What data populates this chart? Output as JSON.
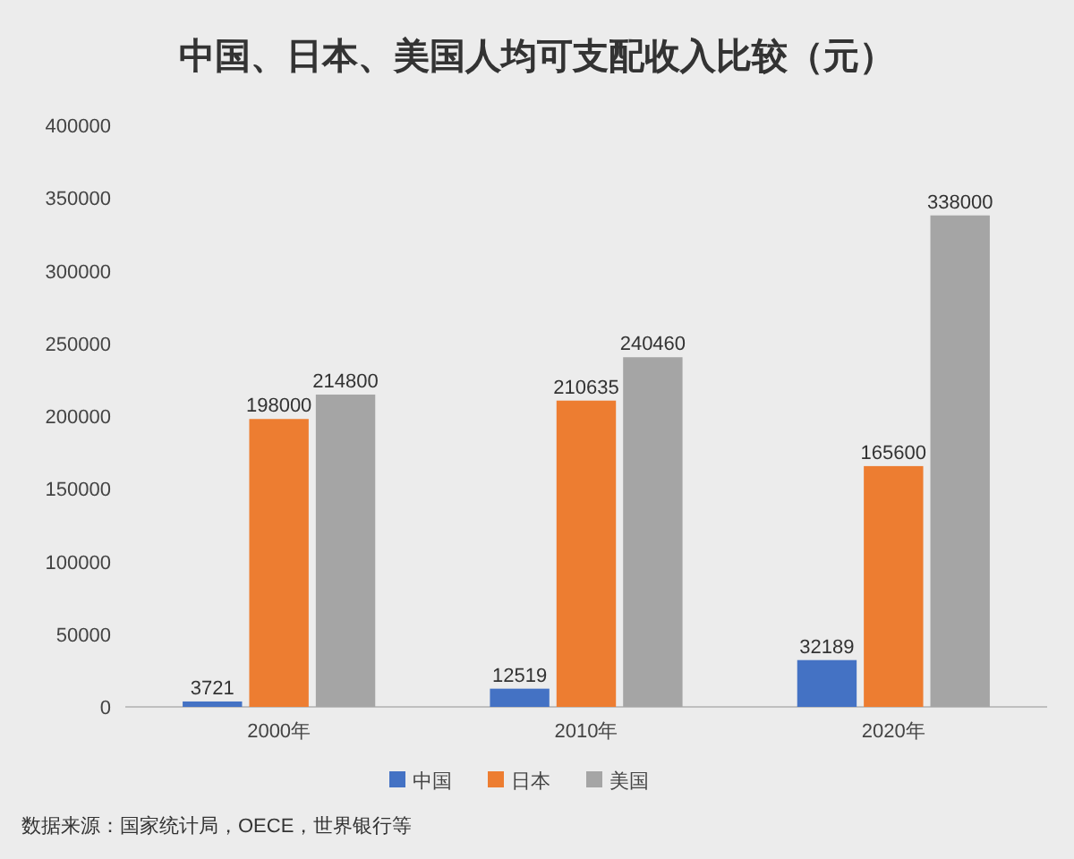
{
  "chart_data": {
    "type": "bar",
    "title": "中国、日本、美国人均可支配收入比较（元）",
    "categories": [
      "2000年",
      "2010年",
      "2020年"
    ],
    "series": [
      {
        "name": "中国",
        "color": "#4472c4",
        "values": [
          3721,
          12519,
          32189
        ]
      },
      {
        "name": "日本",
        "color": "#ed7d31",
        "values": [
          198000,
          210635,
          165600
        ]
      },
      {
        "name": "美国",
        "color": "#a5a5a5",
        "values": [
          214800,
          240460,
          338000
        ]
      }
    ],
    "ylim": [
      0,
      400000
    ],
    "yticks": [
      0,
      50000,
      100000,
      150000,
      200000,
      250000,
      300000,
      350000,
      400000
    ],
    "data_labels": true,
    "legend": "bottom",
    "grid": false,
    "annotations": [
      "数据来源：国家统计局，OECE，世界银行等"
    ]
  }
}
